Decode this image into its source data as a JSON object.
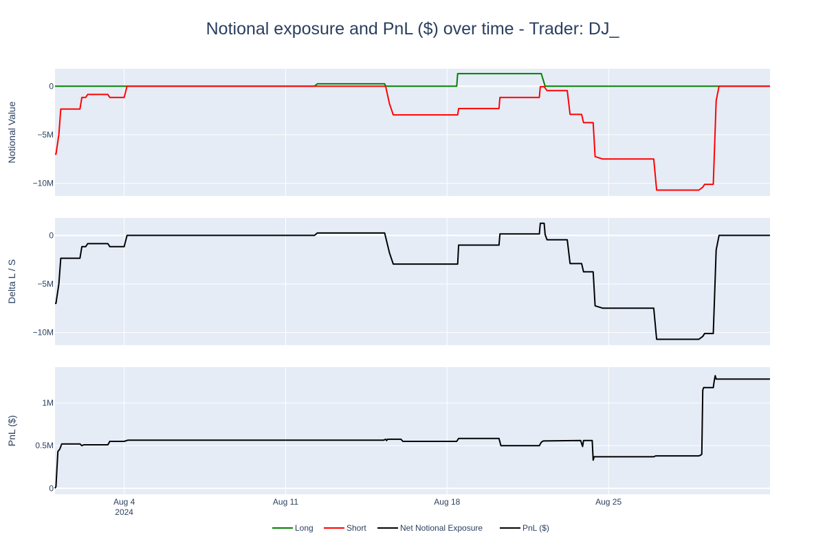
{
  "chart_data": {
    "type": "line",
    "title": "Notional exposure and PnL ($) over time - Trader: DJ_",
    "x_range": [
      "2024-08-01",
      "2024-09-01"
    ],
    "x_ticks": [
      {
        "date": "2024-08-04",
        "label": "Aug 4",
        "sublabel": "2024"
      },
      {
        "date": "2024-08-11",
        "label": "Aug 11"
      },
      {
        "date": "2024-08-18",
        "label": "Aug 18"
      },
      {
        "date": "2024-08-25",
        "label": "Aug 25"
      }
    ],
    "legend": [
      {
        "name": "Long",
        "color": "#008000"
      },
      {
        "name": "Short",
        "color": "#ff0000"
      },
      {
        "name": "Net Notional Exposure",
        "color": "#000000"
      },
      {
        "name": "PnL ($)",
        "color": "#000000"
      }
    ],
    "panels": [
      {
        "ylabel": "Notional Value",
        "ylim": [
          -11.3,
          1.8
        ],
        "yticks": [
          {
            "v": 0,
            "label": "0"
          },
          {
            "v": -5,
            "label": "−5M"
          },
          {
            "v": -10,
            "label": "−10M"
          }
        ],
        "series": [
          {
            "name": "Long",
            "color": "#008000",
            "points": [
              [
                "2024-08-01T00:00",
                0
              ],
              [
                "2024-08-12T06:00",
                0
              ],
              [
                "2024-08-12T09:00",
                0.25
              ],
              [
                "2024-08-15T07:00",
                0.25
              ],
              [
                "2024-08-15T08:00",
                0
              ],
              [
                "2024-08-18T10:00",
                0
              ],
              [
                "2024-08-18T11:00",
                1.3
              ],
              [
                "2024-08-22T02:00",
                1.3
              ],
              [
                "2024-08-22T06:00",
                0
              ],
              [
                "2024-09-01T00:00",
                0
              ]
            ]
          },
          {
            "name": "Short",
            "color": "#ff0000",
            "points": [
              [
                "2024-08-01T00:00",
                -7.0
              ],
              [
                "2024-08-01T01:00",
                -7.0
              ],
              [
                "2024-08-01T04:00",
                -5.0
              ],
              [
                "2024-08-01T06:00",
                -2.35
              ],
              [
                "2024-08-02T02:00",
                -2.35
              ],
              [
                "2024-08-02T04:00",
                -1.15
              ],
              [
                "2024-08-02T08:00",
                -1.15
              ],
              [
                "2024-08-02T10:00",
                -0.85
              ],
              [
                "2024-08-03T07:00",
                -0.85
              ],
              [
                "2024-08-03T09:00",
                -1.15
              ],
              [
                "2024-08-04T00:00",
                -1.15
              ],
              [
                "2024-08-04T03:00",
                0
              ],
              [
                "2024-08-15T08:00",
                0
              ],
              [
                "2024-08-15T12:00",
                -1.8
              ],
              [
                "2024-08-15T16:00",
                -2.95
              ],
              [
                "2024-08-18T11:00",
                -2.95
              ],
              [
                "2024-08-18T12:00",
                -2.3
              ],
              [
                "2024-08-20T06:00",
                -2.3
              ],
              [
                "2024-08-20T07:00",
                -1.15
              ],
              [
                "2024-08-22T00:00",
                -1.15
              ],
              [
                "2024-08-22T01:00",
                -0.05
              ],
              [
                "2024-08-22T05:00",
                -0.05
              ],
              [
                "2024-08-22T08:00",
                -0.45
              ],
              [
                "2024-08-23T05:00",
                -0.45
              ],
              [
                "2024-08-23T08:00",
                -2.9
              ],
              [
                "2024-08-23T20:00",
                -2.9
              ],
              [
                "2024-08-23T22:00",
                -3.75
              ],
              [
                "2024-08-24T08:00",
                -3.75
              ],
              [
                "2024-08-24T10:00",
                -7.25
              ],
              [
                "2024-08-24T18:00",
                -7.5
              ],
              [
                "2024-08-26T23:00",
                -7.5
              ],
              [
                "2024-08-27T02:00",
                -10.7
              ],
              [
                "2024-08-28T22:00",
                -10.7
              ],
              [
                "2024-08-29T02:00",
                -10.4
              ],
              [
                "2024-08-29T04:00",
                -10.1
              ],
              [
                "2024-08-29T13:00",
                -10.1
              ],
              [
                "2024-08-29T16:00",
                -1.5
              ],
              [
                "2024-08-29T19:00",
                0
              ],
              [
                "2024-09-01T00:00",
                0
              ]
            ]
          }
        ]
      },
      {
        "ylabel": "Delta L / S",
        "ylim": [
          -11.3,
          1.8
        ],
        "yticks": [
          {
            "v": 0,
            "label": "0"
          },
          {
            "v": -5,
            "label": "−5M"
          },
          {
            "v": -10,
            "label": "−10M"
          }
        ],
        "series": [
          {
            "name": "Net Notional Exposure",
            "color": "#000000",
            "points": [
              [
                "2024-08-01T00:00",
                -7.0
              ],
              [
                "2024-08-01T01:00",
                -7.0
              ],
              [
                "2024-08-01T04:00",
                -5.0
              ],
              [
                "2024-08-01T06:00",
                -2.35
              ],
              [
                "2024-08-02T02:00",
                -2.35
              ],
              [
                "2024-08-02T04:00",
                -1.15
              ],
              [
                "2024-08-02T08:00",
                -1.15
              ],
              [
                "2024-08-02T10:00",
                -0.85
              ],
              [
                "2024-08-03T07:00",
                -0.85
              ],
              [
                "2024-08-03T09:00",
                -1.15
              ],
              [
                "2024-08-04T00:00",
                -1.15
              ],
              [
                "2024-08-04T03:00",
                0
              ],
              [
                "2024-08-12T06:00",
                0
              ],
              [
                "2024-08-12T09:00",
                0.25
              ],
              [
                "2024-08-15T07:00",
                0.25
              ],
              [
                "2024-08-15T12:00",
                -1.8
              ],
              [
                "2024-08-15T16:00",
                -2.95
              ],
              [
                "2024-08-18T11:00",
                -2.95
              ],
              [
                "2024-08-18T12:00",
                -1.0
              ],
              [
                "2024-08-20T06:00",
                -1.0
              ],
              [
                "2024-08-20T07:00",
                0.15
              ],
              [
                "2024-08-22T00:00",
                0.15
              ],
              [
                "2024-08-22T01:00",
                1.25
              ],
              [
                "2024-08-22T05:00",
                1.25
              ],
              [
                "2024-08-22T06:00",
                0.1
              ],
              [
                "2024-08-22T08:00",
                -0.45
              ],
              [
                "2024-08-23T05:00",
                -0.45
              ],
              [
                "2024-08-23T08:00",
                -2.9
              ],
              [
                "2024-08-23T20:00",
                -2.9
              ],
              [
                "2024-08-23T22:00",
                -3.75
              ],
              [
                "2024-08-24T08:00",
                -3.75
              ],
              [
                "2024-08-24T10:00",
                -7.25
              ],
              [
                "2024-08-24T18:00",
                -7.5
              ],
              [
                "2024-08-26T23:00",
                -7.5
              ],
              [
                "2024-08-27T02:00",
                -10.7
              ],
              [
                "2024-08-28T22:00",
                -10.7
              ],
              [
                "2024-08-29T02:00",
                -10.4
              ],
              [
                "2024-08-29T04:00",
                -10.1
              ],
              [
                "2024-08-29T13:00",
                -10.1
              ],
              [
                "2024-08-29T16:00",
                -1.5
              ],
              [
                "2024-08-29T19:00",
                0
              ],
              [
                "2024-09-01T00:00",
                0
              ]
            ]
          }
        ]
      },
      {
        "ylabel": "PnL ($)",
        "ylim": [
          -0.07,
          1.42
        ],
        "yticks": [
          {
            "v": 0,
            "label": "0"
          },
          {
            "v": 0.5,
            "label": "0.5M"
          },
          {
            "v": 1,
            "label": "1M"
          }
        ],
        "series": [
          {
            "name": "PnL ($)",
            "color": "#000000",
            "points": [
              [
                "2024-08-01T00:00",
                0
              ],
              [
                "2024-08-01T01:00",
                0.02
              ],
              [
                "2024-08-01T03:00",
                0.43
              ],
              [
                "2024-08-01T05:00",
                0.46
              ],
              [
                "2024-08-01T07:00",
                0.52
              ],
              [
                "2024-08-02T02:00",
                0.52
              ],
              [
                "2024-08-02T04:00",
                0.5
              ],
              [
                "2024-08-02T06:00",
                0.51
              ],
              [
                "2024-08-03T07:00",
                0.51
              ],
              [
                "2024-08-03T09:00",
                0.55
              ],
              [
                "2024-08-04T00:00",
                0.55
              ],
              [
                "2024-08-04T04:00",
                0.565
              ],
              [
                "2024-08-15T06:00",
                0.565
              ],
              [
                "2024-08-15T08:00",
                0.575
              ],
              [
                "2024-08-15T09:00",
                0.56
              ],
              [
                "2024-08-15T10:00",
                0.575
              ],
              [
                "2024-08-16T00:00",
                0.575
              ],
              [
                "2024-08-16T02:00",
                0.55
              ],
              [
                "2024-08-18T10:00",
                0.55
              ],
              [
                "2024-08-18T12:00",
                0.585
              ],
              [
                "2024-08-20T06:00",
                0.585
              ],
              [
                "2024-08-20T08:00",
                0.5
              ],
              [
                "2024-08-22T00:00",
                0.5
              ],
              [
                "2024-08-22T02:00",
                0.54
              ],
              [
                "2024-08-22T04:00",
                0.555
              ],
              [
                "2024-08-23T19:00",
                0.56
              ],
              [
                "2024-08-23T21:00",
                0.49
              ],
              [
                "2024-08-23T22:00",
                0.56
              ],
              [
                "2024-08-24T07:00",
                0.56
              ],
              [
                "2024-08-24T08:00",
                0.33
              ],
              [
                "2024-08-24T09:00",
                0.37
              ],
              [
                "2024-08-26T23:00",
                0.37
              ],
              [
                "2024-08-27T01:00",
                0.38
              ],
              [
                "2024-08-28T22:00",
                0.38
              ],
              [
                "2024-08-29T00:00",
                0.39
              ],
              [
                "2024-08-29T01:00",
                0.4
              ],
              [
                "2024-08-29T02:00",
                1.15
              ],
              [
                "2024-08-29T03:00",
                1.18
              ],
              [
                "2024-08-29T13:00",
                1.18
              ],
              [
                "2024-08-29T14:00",
                1.26
              ],
              [
                "2024-08-29T15:00",
                1.32
              ],
              [
                "2024-08-29T16:00",
                1.28
              ],
              [
                "2024-09-01T00:00",
                1.28
              ]
            ]
          }
        ]
      }
    ]
  }
}
